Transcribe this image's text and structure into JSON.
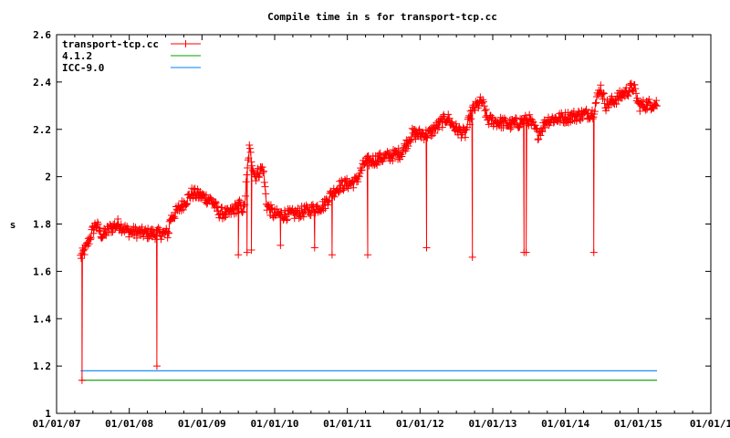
{
  "chart_data": {
    "type": "line",
    "title": "Compile time in s for transport-tcp.cc",
    "xlabel": "",
    "ylabel": "s",
    "xlim": [
      2007,
      2016
    ],
    "ylim": [
      1,
      2.6
    ],
    "x_tick_labels": [
      "01/01/07",
      "01/01/08",
      "01/01/09",
      "01/01/10",
      "01/01/11",
      "01/01/12",
      "01/01/13",
      "01/01/14",
      "01/01/15",
      "01/01/1"
    ],
    "y_tick_labels": [
      "1",
      "1.2",
      "1.4",
      "1.6",
      "1.8",
      "2",
      "2.2",
      "2.4",
      "2.6"
    ],
    "y_ticks": [
      1,
      1.2,
      1.4,
      1.6,
      1.8,
      2,
      2.2,
      2.4,
      2.6
    ],
    "grid": false,
    "legend_position": "top-left",
    "series": [
      {
        "name": "transport-tcp.cc",
        "color": "#ff0000",
        "marker": "plus",
        "trend": [
          [
            2007.33,
            1.66
          ],
          [
            2007.41,
            1.7
          ],
          [
            2007.48,
            1.76
          ],
          [
            2007.54,
            1.8
          ],
          [
            2007.63,
            1.75
          ],
          [
            2007.73,
            1.78
          ],
          [
            2007.85,
            1.8
          ],
          [
            2007.98,
            1.77
          ],
          [
            2008.23,
            1.76
          ],
          [
            2008.54,
            1.76
          ],
          [
            2008.56,
            1.82
          ],
          [
            2008.73,
            1.88
          ],
          [
            2008.86,
            1.93
          ],
          [
            2008.98,
            1.92
          ],
          [
            2009.13,
            1.9
          ],
          [
            2009.23,
            1.85
          ],
          [
            2009.36,
            1.84
          ],
          [
            2009.51,
            1.88
          ],
          [
            2009.58,
            1.86
          ],
          [
            2009.65,
            2.12
          ],
          [
            2009.73,
            2.0
          ],
          [
            2009.84,
            2.04
          ],
          [
            2009.89,
            1.88
          ],
          [
            2009.99,
            1.84
          ],
          [
            2010.24,
            1.84
          ],
          [
            2010.49,
            1.86
          ],
          [
            2010.68,
            1.88
          ],
          [
            2010.76,
            1.92
          ],
          [
            2010.89,
            1.96
          ],
          [
            2011.12,
            1.98
          ],
          [
            2011.24,
            2.06
          ],
          [
            2011.49,
            2.08
          ],
          [
            2011.74,
            2.1
          ],
          [
            2011.89,
            2.18
          ],
          [
            2012.12,
            2.18
          ],
          [
            2012.37,
            2.25
          ],
          [
            2012.5,
            2.2
          ],
          [
            2012.62,
            2.18
          ],
          [
            2012.72,
            2.28
          ],
          [
            2012.85,
            2.32
          ],
          [
            2012.93,
            2.24
          ],
          [
            2013.25,
            2.22
          ],
          [
            2013.5,
            2.24
          ],
          [
            2013.62,
            2.18
          ],
          [
            2013.75,
            2.24
          ],
          [
            2014.0,
            2.25
          ],
          [
            2014.38,
            2.27
          ],
          [
            2014.48,
            2.38
          ],
          [
            2014.56,
            2.3
          ],
          [
            2014.75,
            2.34
          ],
          [
            2014.94,
            2.38
          ],
          [
            2015.01,
            2.3
          ],
          [
            2015.26,
            2.31
          ]
        ],
        "dips": [
          [
            2007.35,
            1.14
          ],
          [
            2008.38,
            1.2
          ],
          [
            2009.5,
            1.67
          ],
          [
            2009.62,
            1.68
          ],
          [
            2009.68,
            1.69
          ],
          [
            2010.08,
            1.71
          ],
          [
            2010.55,
            1.7
          ],
          [
            2010.79,
            1.67
          ],
          [
            2011.28,
            1.67
          ],
          [
            2012.09,
            1.7
          ],
          [
            2012.72,
            1.66
          ],
          [
            2013.43,
            1.68
          ],
          [
            2013.46,
            1.68
          ],
          [
            2014.39,
            1.68
          ]
        ]
      },
      {
        "name": "4.1.2",
        "color": "#00a000",
        "x": [
          2007.33,
          2015.26
        ],
        "values": [
          1.14,
          1.14
        ]
      },
      {
        "name": "ICC-9.0",
        "color": "#0080ff",
        "x": [
          2007.33,
          2015.26
        ],
        "values": [
          1.18,
          1.18
        ]
      }
    ]
  }
}
